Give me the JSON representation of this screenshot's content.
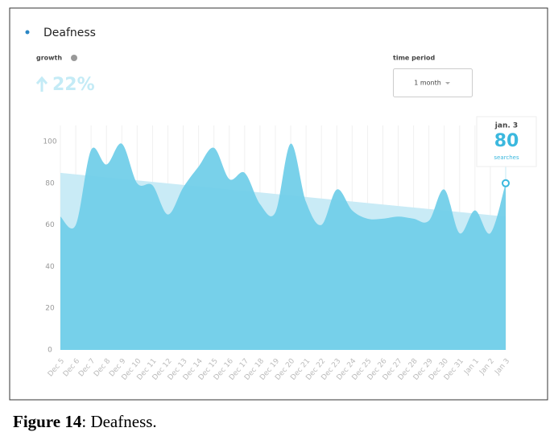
{
  "chart_data": {
    "type": "area",
    "legend_label": "Deafness",
    "growth": {
      "label": "growth",
      "value": "22%"
    },
    "time_period": {
      "label": "time period",
      "value": "1 month"
    },
    "categories": [
      "Dec 5",
      "Dec 6",
      "Dec 7",
      "Dec 8",
      "Dec 9",
      "Dec 10",
      "Dec 11",
      "Dec 12",
      "Dec 13",
      "Dec 14",
      "Dec 15",
      "Dec 16",
      "Dec 17",
      "Dec 18",
      "Dec 19",
      "Dec 20",
      "Dec 21",
      "Dec 22",
      "Dec 23",
      "Dec 24",
      "Dec 25",
      "Dec 26",
      "Dec 27",
      "Dec 28",
      "Dec 29",
      "Dec 30",
      "Dec 31",
      "Jan 1",
      "Jan 2",
      "Jan 3"
    ],
    "series": [
      {
        "color": "#72cfe9",
        "values": [
          64,
          60,
          96,
          89,
          99,
          80,
          79,
          65,
          78,
          88,
          97,
          82,
          85,
          70,
          66,
          99,
          71,
          60,
          77,
          67,
          63,
          63,
          64,
          63,
          62,
          77,
          56,
          67,
          56,
          80
        ]
      }
    ],
    "trend": {
      "color": "#c9ebf6",
      "start": 85,
      "end": 64
    },
    "tooltip": {
      "label": "jan. 3",
      "unit": "searches"
    },
    "ylim": [
      0,
      100
    ],
    "yticks": [
      0,
      20,
      40,
      60,
      80,
      100
    ],
    "grid": true
  },
  "caption": {
    "label": "Figure 14",
    "text": ": Deafness."
  }
}
